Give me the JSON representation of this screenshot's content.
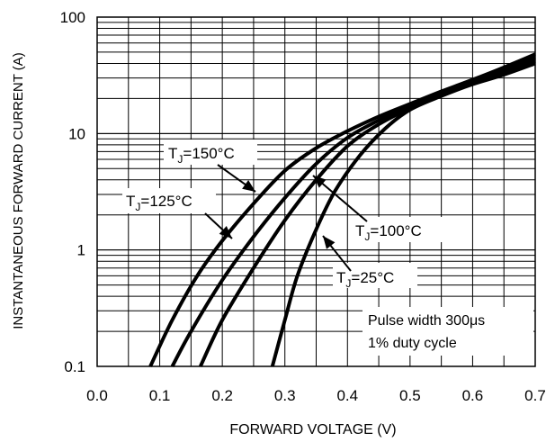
{
  "chart_data": {
    "type": "line",
    "xlabel": "FORWARD VOLTAGE (V)",
    "ylabel": "INSTANTANEOUS FORWARD CURRENT (A)",
    "xlim": [
      0.0,
      0.7
    ],
    "ylim": [
      0.1,
      100
    ],
    "yscale": "log",
    "grid": true,
    "x_ticks": [
      "0.0",
      "0.1",
      "0.2",
      "0.3",
      "0.4",
      "0.5",
      "0.6",
      "0.7"
    ],
    "y_ticks": [
      "0.1",
      "1",
      "10",
      "100"
    ],
    "series": [
      {
        "name": "TJ=150°C",
        "label_main": "T",
        "label_sub": "J",
        "label_rest": "=150°C",
        "points": [
          [
            0.085,
            0.1
          ],
          [
            0.12,
            0.25
          ],
          [
            0.16,
            0.6
          ],
          [
            0.2,
            1.2
          ],
          [
            0.25,
            2.5
          ],
          [
            0.3,
            4.8
          ],
          [
            0.35,
            7.5
          ],
          [
            0.4,
            10.5
          ],
          [
            0.45,
            14
          ],
          [
            0.5,
            18
          ],
          [
            0.55,
            23
          ],
          [
            0.6,
            29
          ],
          [
            0.65,
            37
          ],
          [
            0.7,
            48
          ]
        ]
      },
      {
        "name": "TJ=125°C",
        "label_main": "T",
        "label_sub": "J",
        "label_rest": "=125°C",
        "points": [
          [
            0.12,
            0.1
          ],
          [
            0.15,
            0.2
          ],
          [
            0.2,
            0.55
          ],
          [
            0.25,
            1.3
          ],
          [
            0.3,
            2.8
          ],
          [
            0.35,
            5.5
          ],
          [
            0.4,
            9.2
          ],
          [
            0.45,
            13
          ],
          [
            0.5,
            17.5
          ],
          [
            0.55,
            22.5
          ],
          [
            0.6,
            28
          ],
          [
            0.65,
            35
          ],
          [
            0.7,
            45
          ]
        ]
      },
      {
        "name": "TJ=100°C",
        "label_main": "T",
        "label_sub": "J",
        "label_rest": "=100°C",
        "points": [
          [
            0.165,
            0.1
          ],
          [
            0.2,
            0.25
          ],
          [
            0.25,
            0.7
          ],
          [
            0.3,
            1.8
          ],
          [
            0.35,
            4.0
          ],
          [
            0.4,
            7.8
          ],
          [
            0.45,
            12
          ],
          [
            0.5,
            16.5
          ],
          [
            0.55,
            21.5
          ],
          [
            0.6,
            27
          ],
          [
            0.65,
            33
          ],
          [
            0.7,
            42
          ]
        ]
      },
      {
        "name": "TJ=25°C",
        "label_main": "T",
        "label_sub": "J",
        "label_rest": "=25°C",
        "points": [
          [
            0.28,
            0.1
          ],
          [
            0.3,
            0.25
          ],
          [
            0.32,
            0.6
          ],
          [
            0.35,
            1.5
          ],
          [
            0.38,
            3.2
          ],
          [
            0.42,
            6.5
          ],
          [
            0.46,
            11
          ],
          [
            0.5,
            16
          ],
          [
            0.55,
            21
          ],
          [
            0.6,
            26.5
          ],
          [
            0.65,
            32
          ],
          [
            0.7,
            40
          ]
        ]
      }
    ],
    "annotations": {
      "note_line1": "Pulse width 300μs",
      "note_line2": "1% duty cycle"
    }
  }
}
